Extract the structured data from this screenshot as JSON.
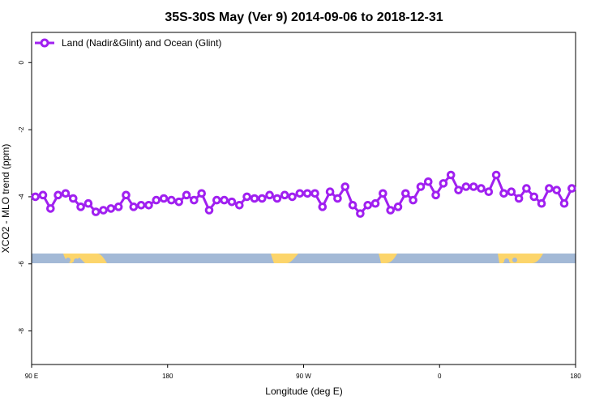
{
  "chart_data": {
    "type": "line",
    "title": "35S-30S May (Ver 9)   2014-09-06 to 2018-12-31",
    "xlabel": "Longitude (deg E)",
    "ylabel": "XCO2 - MLO trend (ppm)",
    "xlim": [
      90,
      450
    ],
    "ylim": [
      -9.0,
      0.9
    ],
    "x_ticks": [
      {
        "value": 90,
        "label": "90 E"
      },
      {
        "value": 180,
        "label": "180"
      },
      {
        "value": 270,
        "label": "90 W"
      },
      {
        "value": 360,
        "label": "0"
      },
      {
        "value": 450,
        "label": "180"
      }
    ],
    "y_ticks": [
      {
        "value": 0,
        "label": "0"
      },
      {
        "value": -2,
        "label": "-2"
      },
      {
        "value": -4,
        "label": "-4"
      },
      {
        "value": -6,
        "label": "-6"
      },
      {
        "value": -8,
        "label": "-8"
      }
    ],
    "legend_position": "top-left",
    "line_color": "#a020f0",
    "ocean_color": "#a3b9d6",
    "land_color": "#fcd56b",
    "series": [
      {
        "name": "Land (Nadir&Glint) and Ocean (Glint)",
        "x": [
          92.5,
          97.5,
          102.5,
          107.5,
          112.5,
          117.5,
          122.5,
          127.5,
          132.5,
          137.5,
          142.5,
          147.5,
          152.5,
          157.5,
          162.5,
          167.5,
          172.5,
          177.5,
          182.5,
          187.5,
          192.5,
          197.5,
          202.5,
          207.5,
          212.5,
          217.5,
          222.5,
          227.5,
          232.5,
          237.5,
          242.5,
          247.5,
          252.5,
          257.5,
          262.5,
          267.5,
          272.5,
          277.5,
          282.5,
          287.5,
          292.5,
          297.5,
          302.5,
          307.5,
          312.5,
          317.5,
          322.5,
          327.5,
          332.5,
          337.5,
          342.5,
          347.5,
          352.5,
          357.5,
          362.5,
          367.5,
          372.5,
          377.5,
          382.5,
          387.5,
          392.5,
          397.5,
          402.5,
          407.5,
          412.5,
          417.5,
          422.5,
          427.5,
          432.5,
          437.5,
          442.5,
          447.5
        ],
        "y": [
          -4.0,
          -3.95,
          -4.35,
          -3.95,
          -3.9,
          -4.05,
          -4.3,
          -4.2,
          -4.45,
          -4.4,
          -4.35,
          -4.3,
          -3.95,
          -4.3,
          -4.25,
          -4.25,
          -4.1,
          -4.05,
          -4.1,
          -4.15,
          -3.95,
          -4.1,
          -3.9,
          -4.4,
          -4.1,
          -4.1,
          -4.15,
          -4.25,
          -4.0,
          -4.05,
          -4.05,
          -3.95,
          -4.05,
          -3.95,
          -4.0,
          -3.9,
          -3.9,
          -3.9,
          -4.3,
          -3.85,
          -4.05,
          -3.7,
          -4.25,
          -4.5,
          -4.25,
          -4.2,
          -3.9,
          -4.4,
          -4.3,
          -3.9,
          -4.1,
          -3.7,
          -3.55,
          -3.95,
          -3.6,
          -3.35,
          -3.8,
          -3.7,
          -3.7,
          -3.75,
          -3.85,
          -3.35,
          -3.9,
          -3.85,
          -4.05,
          -3.75,
          -4.0,
          -4.2,
          -3.75,
          -3.8,
          -4.2,
          -3.75
        ]
      }
    ]
  }
}
